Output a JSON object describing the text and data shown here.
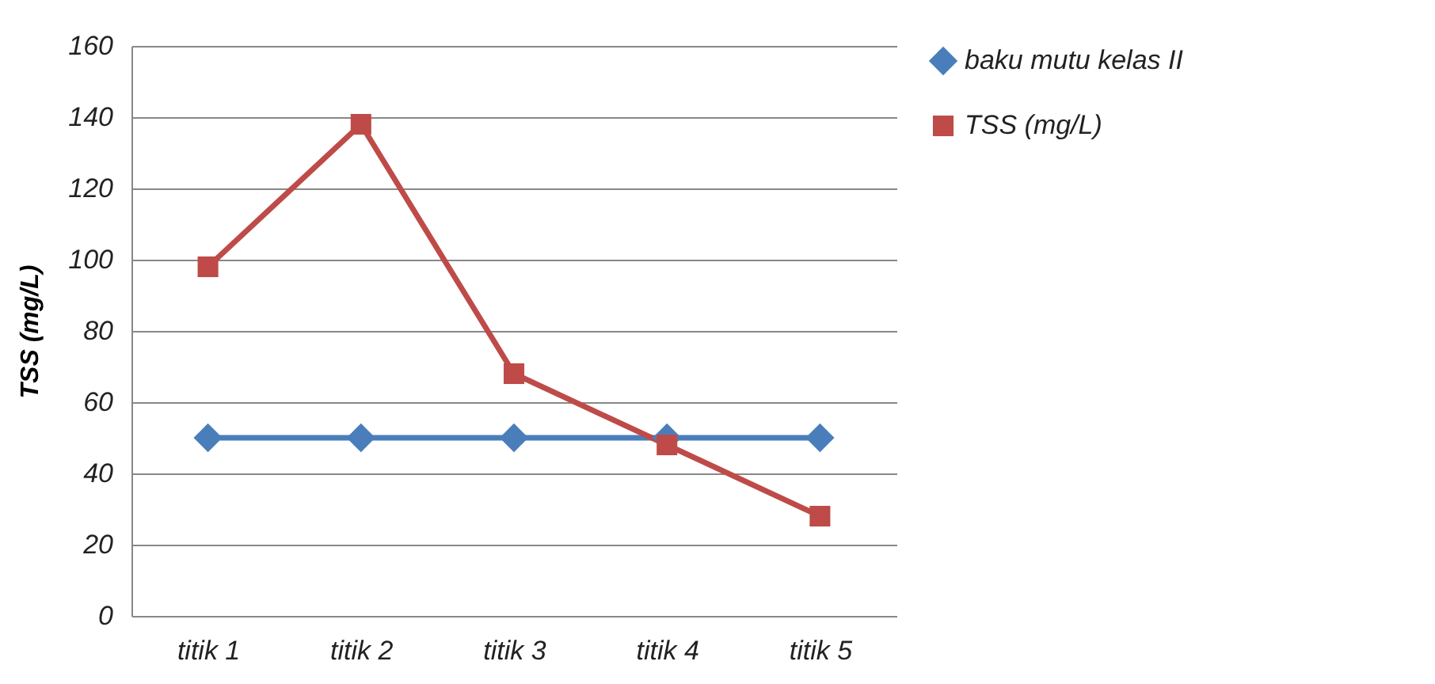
{
  "chart_data": {
    "type": "line",
    "ylabel": "TSS (mg/L)",
    "categories": [
      "titik 1",
      "titik 2",
      "titik 3",
      "titik 4",
      "titik 5"
    ],
    "series": [
      {
        "name": "baku mutu kelas II",
        "color": "#4a7ebb",
        "marker": "diamond",
        "values": [
          50,
          50,
          50,
          50,
          50
        ]
      },
      {
        "name": "TSS (mg/L)",
        "color": "#be4b48",
        "marker": "square",
        "values": [
          98,
          138,
          68,
          48,
          28
        ]
      }
    ],
    "ylim": [
      0,
      160
    ],
    "yticks": [
      0,
      20,
      40,
      60,
      80,
      100,
      120,
      140,
      160
    ],
    "grid": "y",
    "legend": "right",
    "line_style": "solid"
  }
}
